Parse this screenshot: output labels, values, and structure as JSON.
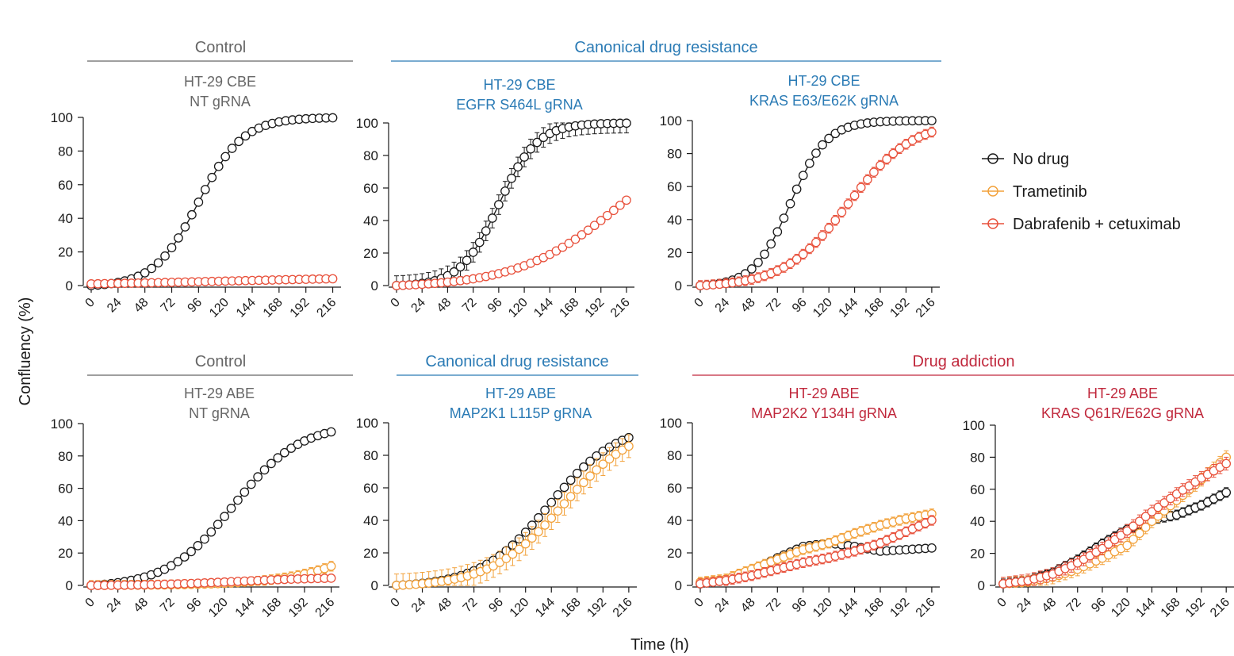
{
  "colors": {
    "grey": "#666666",
    "blue": "#2b7bb5",
    "red": "#c0283c",
    "black": "#1a1a1a",
    "orange": "#f2a23c",
    "coral": "#e8513c"
  },
  "figure": {
    "ylabel": "Confluency (%)",
    "xlabel": "Time (h)",
    "legend": {
      "placement": "right",
      "entries": [
        {
          "label": "No drug",
          "color": "#1a1a1a"
        },
        {
          "label": "Trametinib",
          "color": "#f2a23c"
        },
        {
          "label": "Dabrafenib + cetuximab",
          "color": "#e8513c"
        }
      ]
    },
    "groups": [
      {
        "label": "Control",
        "color": "#666666"
      },
      {
        "label": "Canonical drug resistance",
        "color": "#2b7bb5"
      },
      {
        "label": "Control",
        "color": "#666666"
      },
      {
        "label": "Canonical drug resistance",
        "color": "#2b7bb5"
      },
      {
        "label": "Drug addiction",
        "color": "#c0283c"
      }
    ]
  },
  "chart_data": [
    {
      "type": "line",
      "title_line1": "HT-29 CBE",
      "title_line2": "NT gRNA",
      "title_color": "#666666",
      "xlim": [
        0,
        222
      ],
      "ylim": [
        0,
        100
      ],
      "xticks": [
        "0",
        "24",
        "48",
        "72",
        "96",
        "120",
        "144",
        "168",
        "192",
        "216"
      ],
      "yticks": [
        "0",
        "20",
        "40",
        "60",
        "80",
        "100"
      ],
      "series": [
        {
          "name": "No drug",
          "color": "#1a1a1a",
          "y0": 0,
          "ymax": 100,
          "t50": 96,
          "w": 20,
          "err": 2
        },
        {
          "name": "Dabrafenib + cetuximab",
          "color": "#e8513c",
          "y0": 1,
          "ymax": 5.5,
          "t50": 120,
          "w": 90,
          "err": 0.3
        }
      ]
    },
    {
      "type": "line",
      "title_line1": "HT-29 CBE",
      "title_line2": "EGFR S464L gRNA",
      "title_color": "#2b7bb5",
      "xlim": [
        0,
        222
      ],
      "ylim": [
        0,
        100
      ],
      "xticks": [
        "0",
        "24",
        "48",
        "72",
        "96",
        "120",
        "144",
        "168",
        "192",
        "216"
      ],
      "yticks": [
        "0",
        "20",
        "40",
        "60",
        "80",
        "100"
      ],
      "series": [
        {
          "name": "No drug",
          "color": "#1a1a1a",
          "y0": 0,
          "ymax": 100,
          "t50": 96,
          "w": 18,
          "err": 6
        },
        {
          "name": "Dabrafenib + cetuximab",
          "color": "#e8513c",
          "y0": 0,
          "ymax": 100,
          "t50": 210,
          "w": 48,
          "err": 1
        }
      ]
    },
    {
      "type": "line",
      "title_line1": "HT-29 CBE",
      "title_line2": "KRAS E63/E62K gRNA",
      "title_color": "#2b7bb5",
      "xlim": [
        0,
        222
      ],
      "ylim": [
        0,
        100
      ],
      "xticks": [
        "0",
        "24",
        "48",
        "72",
        "96",
        "120",
        "144",
        "168",
        "192",
        "216"
      ],
      "yticks": [
        "0",
        "20",
        "40",
        "60",
        "80",
        "100"
      ],
      "series": [
        {
          "name": "No drug",
          "color": "#1a1a1a",
          "y0": 0,
          "ymax": 100,
          "t50": 84,
          "w": 17,
          "err": 2
        },
        {
          "name": "Dabrafenib + cetuximab",
          "color": "#e8513c",
          "y0": 0,
          "ymax": 100,
          "t50": 138,
          "w": 30,
          "err": 3
        }
      ]
    },
    {
      "type": "line",
      "title_line1": "HT-29 ABE",
      "title_line2": "NT gRNA",
      "title_color": "#666666",
      "xlim": [
        0,
        222
      ],
      "ylim": [
        0,
        100
      ],
      "xticks": [
        "0",
        "24",
        "48",
        "72",
        "96",
        "120",
        "144",
        "168",
        "192",
        "216"
      ],
      "yticks": [
        "0",
        "20",
        "40",
        "60",
        "80",
        "100"
      ],
      "series": [
        {
          "name": "No drug",
          "color": "#1a1a1a",
          "y0": 0,
          "ymax": 100,
          "t50": 128,
          "w": 30,
          "err": 0.5
        },
        {
          "name": "Trametinib",
          "color": "#f2a23c",
          "y0": 0,
          "ymax": 100,
          "t50": 300,
          "w": 42,
          "err": 3
        },
        {
          "name": "Dabrafenib + cetuximab",
          "color": "#e8513c",
          "y0": 0,
          "ymax": 5,
          "t50": 130,
          "w": 40,
          "err": 0.5
        }
      ]
    },
    {
      "type": "line",
      "title_line1": "HT-29 ABE",
      "title_line2": "MAP2K1 L115P gRNA",
      "title_color": "#2b7bb5",
      "xlim": [
        0,
        222
      ],
      "ylim": [
        0,
        100
      ],
      "xticks": [
        "0",
        "24",
        "48",
        "72",
        "96",
        "120",
        "144",
        "168",
        "192",
        "216"
      ],
      "yticks": [
        "0",
        "20",
        "40",
        "60",
        "80",
        "100"
      ],
      "series": [
        {
          "name": "No drug",
          "color": "#1a1a1a",
          "y0": 0,
          "ymax": 100,
          "t50": 142,
          "w": 32,
          "err": 2
        },
        {
          "name": "Trametinib",
          "color": "#f2a23c",
          "y0": 0,
          "ymax": 100,
          "t50": 155,
          "w": 34,
          "err": 7
        }
      ]
    },
    {
      "type": "line",
      "title_line1": "HT-29 ABE",
      "title_line2": "MAP2K2 Y134H gRNA",
      "title_color": "#c0283c",
      "xlim": [
        0,
        222
      ],
      "ylim": [
        0,
        100
      ],
      "xticks": [
        "0",
        "24",
        "48",
        "72",
        "96",
        "120",
        "144",
        "168",
        "192",
        "216"
      ],
      "yticks": [
        "0",
        "20",
        "40",
        "60",
        "80",
        "100"
      ],
      "series": [
        {
          "name": "No drug",
          "color": "#1a1a1a",
          "points": [
            [
              0,
              1
            ],
            [
              24,
              3
            ],
            [
              48,
              9
            ],
            [
              72,
              17
            ],
            [
              96,
              24
            ],
            [
              120,
              26
            ],
            [
              144,
              24
            ],
            [
              168,
              21
            ],
            [
              192,
              22
            ],
            [
              216,
              23
            ]
          ],
          "err": 2
        },
        {
          "name": "Trametinib",
          "color": "#f2a23c",
          "points": [
            [
              0,
              2
            ],
            [
              24,
              4
            ],
            [
              48,
              10
            ],
            [
              72,
              16
            ],
            [
              96,
              22
            ],
            [
              120,
              26
            ],
            [
              144,
              32
            ],
            [
              168,
              37
            ],
            [
              192,
              41
            ],
            [
              216,
              44
            ]
          ],
          "err": 3
        },
        {
          "name": "Dabrafenib + cetuximab",
          "color": "#e8513c",
          "points": [
            [
              0,
              1
            ],
            [
              24,
              3
            ],
            [
              48,
              6
            ],
            [
              72,
              10
            ],
            [
              96,
              14
            ],
            [
              120,
              17
            ],
            [
              144,
              21
            ],
            [
              168,
              26
            ],
            [
              192,
              33
            ],
            [
              216,
              40
            ]
          ],
          "err": 3
        }
      ]
    },
    {
      "type": "line",
      "title_line1": "HT-29 ABE",
      "title_line2": "KRAS Q61R/E62G gRNA",
      "title_color": "#c0283c",
      "xlim": [
        0,
        222
      ],
      "ylim": [
        0,
        100
      ],
      "xticks": [
        "0",
        "24",
        "48",
        "72",
        "96",
        "120",
        "144",
        "168",
        "192",
        "216"
      ],
      "yticks": [
        "0",
        "20",
        "40",
        "60",
        "80",
        "100"
      ],
      "series": [
        {
          "name": "No drug",
          "color": "#1a1a1a",
          "points": [
            [
              0,
              1
            ],
            [
              24,
              3
            ],
            [
              48,
              8
            ],
            [
              72,
              16
            ],
            [
              96,
              26
            ],
            [
              120,
              35
            ],
            [
              144,
              41
            ],
            [
              168,
              44
            ],
            [
              192,
              50
            ],
            [
              216,
              58
            ]
          ],
          "err": 3
        },
        {
          "name": "Trametinib",
          "color": "#f2a23c",
          "points": [
            [
              0,
              1
            ],
            [
              24,
              2
            ],
            [
              48,
              5
            ],
            [
              72,
              10
            ],
            [
              96,
              17
            ],
            [
              120,
              25
            ],
            [
              144,
              40
            ],
            [
              168,
              53
            ],
            [
              192,
              66
            ],
            [
              216,
              80
            ]
          ],
          "err": 4
        },
        {
          "name": "Dabrafenib + cetuximab",
          "color": "#e8513c",
          "points": [
            [
              0,
              1
            ],
            [
              24,
              3
            ],
            [
              48,
              7
            ],
            [
              72,
              14
            ],
            [
              96,
              23
            ],
            [
              120,
              34
            ],
            [
              144,
              46
            ],
            [
              168,
              57
            ],
            [
              192,
              67
            ],
            [
              216,
              76
            ]
          ],
          "err": 4
        }
      ]
    }
  ]
}
